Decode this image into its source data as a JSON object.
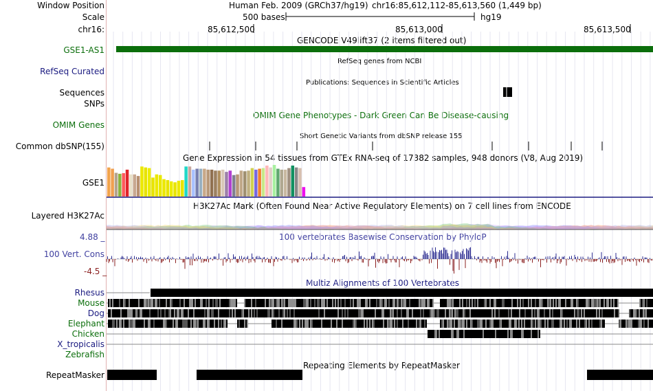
{
  "ruler": {
    "window_position_label": "Window Position",
    "scale_label": "Scale",
    "chrom_label": "chr16:",
    "assembly_text": "Human Feb. 2009 (GRCh37/hg19)",
    "coordinates": "chr16:85,612,112-85,613,560 (1,449 bp)",
    "scale_text": "500 bases",
    "db_text": "hg19",
    "ticks": [
      "85,612,500",
      "85,613,000",
      "85,613,500"
    ]
  },
  "tracks": {
    "gencode": {
      "title": "GENCODE V49lift37 (2 items filtered out)",
      "gene_label": "GSE1-AS1",
      "gene_color": "#0b6e0b"
    },
    "refseq": {
      "title": "RefSeq genes from NCBI",
      "label": "RefSeq Curated",
      "label_color": "#1a1a80"
    },
    "pubs": {
      "title": "Publications: Sequences in Scientific Articles",
      "label1": "Sequences",
      "label2": "SNPs"
    },
    "omim": {
      "title": "OMIM Gene Phenotypes - Dark Green Can Be Disease-causing",
      "label": "OMIM Genes",
      "color": "#0b6e0b"
    },
    "dbsnp": {
      "title": "Short Genetic Variants from dbSNP release 155",
      "label": "Common dbSNP(155)"
    },
    "gtex": {
      "title": "Gene Expression in 54 tissues from GTEx RNA-seq of 17382 samples, 948 donors (V8, Aug 2019)",
      "label": "GSE1",
      "bars": [
        {
          "v": 0.92,
          "c": "#f2a34b"
        },
        {
          "v": 0.88,
          "c": "#f0a050"
        },
        {
          "v": 0.75,
          "c": "#b5a38c"
        },
        {
          "v": 0.72,
          "c": "#8cb33c"
        },
        {
          "v": 0.74,
          "c": "#ff5a5a"
        },
        {
          "v": 0.85,
          "c": "#e0242a"
        },
        {
          "v": 0.7,
          "c": "#e8e0c8"
        },
        {
          "v": 0.7,
          "c": "#c8a890"
        },
        {
          "v": 0.65,
          "c": "#b89070"
        },
        {
          "v": 0.95,
          "c": "#ece800"
        },
        {
          "v": 0.92,
          "c": "#e8e400"
        },
        {
          "v": 0.9,
          "c": "#ecec00"
        },
        {
          "v": 0.6,
          "c": "#e8e400"
        },
        {
          "v": 0.7,
          "c": "#ece800"
        },
        {
          "v": 0.68,
          "c": "#e8e800"
        },
        {
          "v": 0.55,
          "c": "#ece800"
        },
        {
          "v": 0.52,
          "c": "#e8e400"
        },
        {
          "v": 0.48,
          "c": "#ecec00"
        },
        {
          "v": 0.45,
          "c": "#e8e400"
        },
        {
          "v": 0.5,
          "c": "#ece800"
        },
        {
          "v": 0.52,
          "c": "#e8e400"
        },
        {
          "v": 0.95,
          "c": "#20d8c8"
        },
        {
          "v": 0.95,
          "c": "#c8a8a0"
        },
        {
          "v": 0.85,
          "c": "#a8c0ff"
        },
        {
          "v": 0.88,
          "c": "#7880b0"
        },
        {
          "v": 0.88,
          "c": "#98b0c0"
        },
        {
          "v": 0.88,
          "c": "#c8a888"
        },
        {
          "v": 0.85,
          "c": "#b89878"
        },
        {
          "v": 0.85,
          "c": "#907050"
        },
        {
          "v": 0.82,
          "c": "#9c8060"
        },
        {
          "v": 0.82,
          "c": "#b09060"
        },
        {
          "v": 0.85,
          "c": "#d8c8b8"
        },
        {
          "v": 0.78,
          "c": "#9c80a8"
        },
        {
          "v": 0.82,
          "c": "#b040d0"
        },
        {
          "v": 0.68,
          "c": "#808090"
        },
        {
          "v": 0.7,
          "c": "#b89878"
        },
        {
          "v": 0.82,
          "c": "#c0a888"
        },
        {
          "v": 0.8,
          "c": "#a09070"
        },
        {
          "v": 0.82,
          "c": "#c0b080"
        },
        {
          "v": 0.9,
          "c": "#d0d050"
        },
        {
          "v": 0.85,
          "c": "#7868e0"
        },
        {
          "v": 0.88,
          "c": "#f08030"
        },
        {
          "v": 0.9,
          "c": "#c8e888"
        },
        {
          "v": 0.98,
          "c": "#ffb8b8"
        },
        {
          "v": 0.92,
          "c": "#e0d0c8"
        },
        {
          "v": 1.0,
          "c": "#a8f0a0"
        },
        {
          "v": 0.88,
          "c": "#60a870"
        },
        {
          "v": 0.85,
          "c": "#b0a890"
        },
        {
          "v": 0.85,
          "c": "#c8b8a0"
        },
        {
          "v": 0.9,
          "c": "#a09080"
        },
        {
          "v": 0.98,
          "c": "#109060"
        },
        {
          "v": 0.92,
          "c": "#888888"
        },
        {
          "v": 0.9,
          "c": "#d8c0b0"
        },
        {
          "v": 0.3,
          "c": "#ee10ee"
        }
      ]
    },
    "h3k27ac": {
      "title": "H3K27Ac Mark (Often Found Near Active Regulatory Elements) on 7 cell lines from ENCODE",
      "label": "Layered H3K27Ac"
    },
    "phylop": {
      "title": "100 vertebrates Basewise Conservation by PhyloP",
      "label": "100 Vert. Cons",
      "ymax": "4.88 _",
      "ymin": "-4.5 _",
      "label_color": "#4040a0",
      "ymin_color": "#8b2020"
    },
    "multiz": {
      "title": "Multiz Alignments of 100 Vertebrates",
      "species": [
        {
          "name": "Rhesus",
          "color": "#1a1a80"
        },
        {
          "name": "Mouse",
          "color": "#0b6e0b"
        },
        {
          "name": "Dog",
          "color": "#1a1a80"
        },
        {
          "name": "Elephant",
          "color": "#0b6e0b"
        },
        {
          "name": "Chicken",
          "color": "#0b6e0b"
        },
        {
          "name": "X_tropicalis",
          "color": "#1a1a80"
        },
        {
          "name": "Zebrafish",
          "color": "#0b6e0b"
        }
      ]
    },
    "repeatmasker": {
      "title": "Repeating Elements by RepeatMasker",
      "label": "RepeatMasker"
    }
  }
}
